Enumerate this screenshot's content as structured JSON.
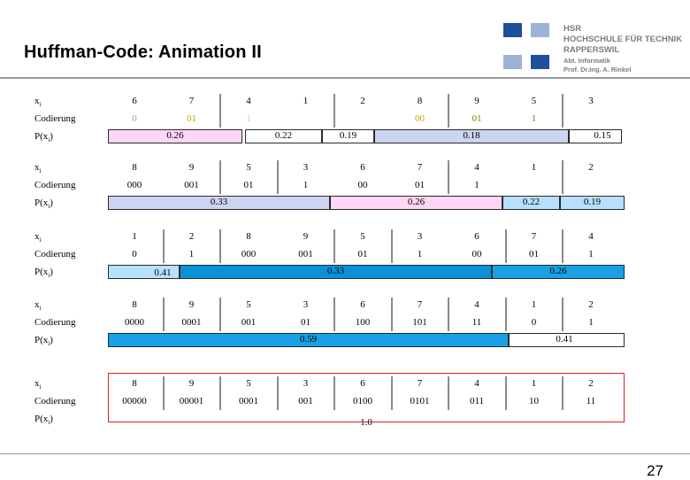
{
  "header": {
    "title": "Huffman-Code: Animation II",
    "logo_lines": [
      "HSR",
      "HOCHSCHULE FÜR TECHNIK",
      "RAPPERSWIL"
    ],
    "logo_sub": [
      "Abt. Informatik",
      "Prof. Dr.Ing. A. Rinkel"
    ],
    "logo_colors": [
      "#1f4e9a",
      "#9db3d6"
    ]
  },
  "labels": {
    "x": "x",
    "x_sub": "i",
    "code": "Codierung",
    "p": "P(x",
    "p_sub": "i",
    "p_close": ")"
  },
  "blocks": [
    {
      "x": [
        "6",
        "7",
        "4",
        "1",
        "2",
        "8",
        "9",
        "5",
        "3"
      ],
      "code": [
        "0",
        "01",
        "1",
        "",
        "",
        "00",
        "01",
        "1",
        ""
      ],
      "code_colors": [
        "#8aa7d8",
        "#c9a400",
        "#f2b5e6",
        "",
        "",
        "#c9a400",
        "#6b8f00",
        "#6b8f00",
        ""
      ],
      "bars": [
        {
          "label": "0.26",
          "color": "#ffd6f5"
        },
        {
          "label": "0.22",
          "color": "#ffffff"
        },
        {
          "label": "0.19",
          "color": "#ffffff"
        },
        {
          "label": "0.18",
          "color": "#cdd4f2"
        },
        {
          "label": "0.15",
          "color": "#ffffff"
        }
      ]
    },
    {
      "x": [
        "8",
        "9",
        "5",
        "3",
        "6",
        "7",
        "4",
        "1",
        "2"
      ],
      "code": [
        "000",
        "001",
        "01",
        "1",
        "00",
        "01",
        "1",
        "",
        ""
      ],
      "bars": [
        {
          "label": "0.33",
          "color": "#cdd4f2"
        },
        {
          "label": "0.26",
          "color": "#ffd6f5"
        },
        {
          "label": "0.22",
          "color": "#b7e0ff"
        },
        {
          "label": "0.19",
          "color": "#b7e0ff"
        }
      ]
    },
    {
      "x": [
        "1",
        "2",
        "8",
        "9",
        "5",
        "3",
        "6",
        "7",
        "4"
      ],
      "code": [
        "0",
        "1",
        "000",
        "001",
        "01",
        "1",
        "00",
        "01",
        "1"
      ],
      "bars": [
        {
          "label": "0.41",
          "color": "#b7e0ff"
        },
        {
          "label": "0.33",
          "color": "#0a90d8"
        },
        {
          "label": "0.26",
          "color": "#1aa0e6"
        }
      ]
    },
    {
      "x": [
        "8",
        "9",
        "5",
        "3",
        "6",
        "7",
        "4",
        "1",
        "2"
      ],
      "code": [
        "0000",
        "0001",
        "001",
        "01",
        "100",
        "101",
        "11",
        "0",
        "1"
      ],
      "bars": [
        {
          "label": "0.59",
          "color": "#1aa0e6"
        },
        {
          "label": "0.41",
          "color": "#ffffff"
        }
      ]
    },
    {
      "x": [
        "8",
        "9",
        "5",
        "3",
        "6",
        "7",
        "4",
        "1",
        "2"
      ],
      "code": [
        "00000",
        "00001",
        "0001",
        "001",
        "0100",
        "0101",
        "011",
        "10",
        "11"
      ],
      "bars": [
        {
          "label": "1.0",
          "color": "#ffffff"
        }
      ]
    }
  ],
  "page_number": "27"
}
